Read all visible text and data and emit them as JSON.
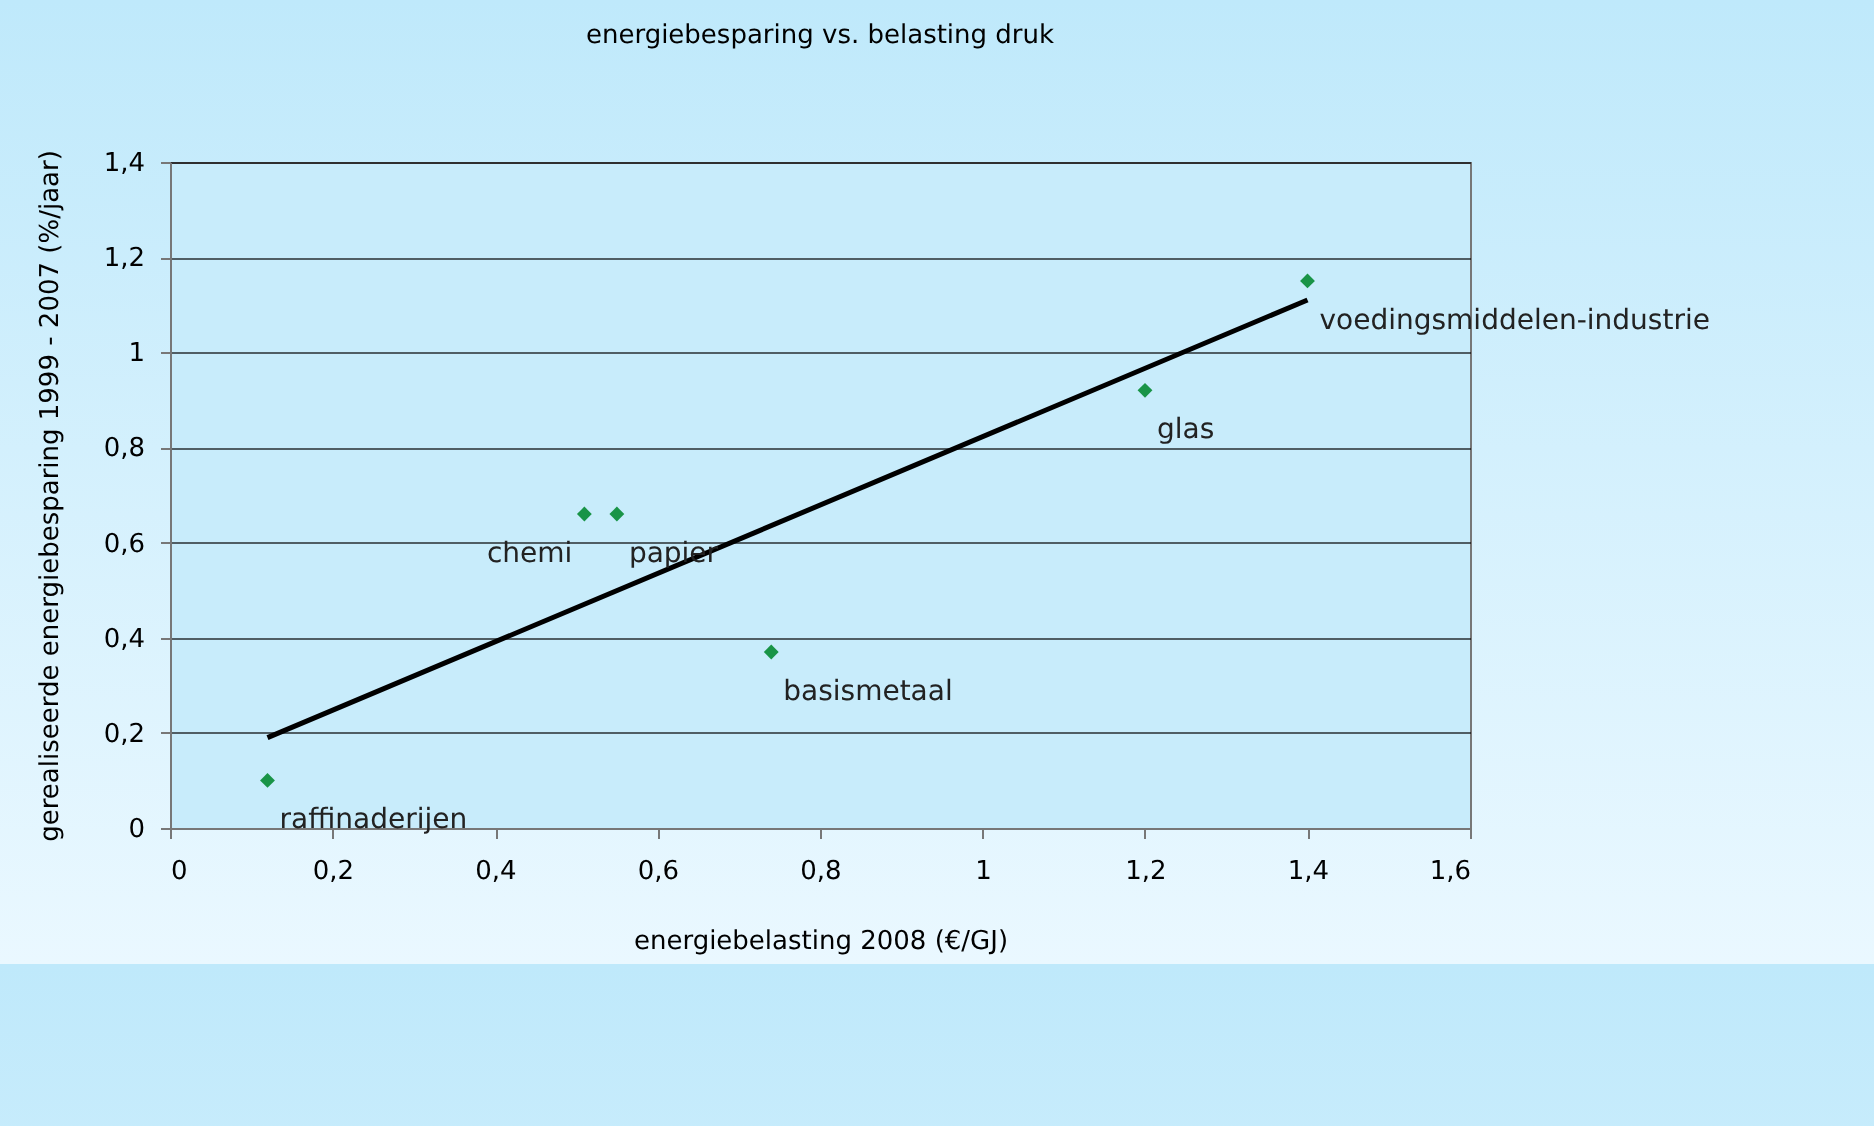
{
  "chart_data": {
    "type": "scatter",
    "title": "energiebesparing vs. belasting druk",
    "xlabel": "energiebelasting 2008 (€/GJ)",
    "ylabel": "gerealiseerde energiebesparing 1999 - 2007 (%/jaar)",
    "xlim": [
      0,
      1.6
    ],
    "xticks": [
      0,
      {
        "value": 0.2,
        "label": "0,2"
      },
      {
        "value": 0.4,
        "label": "0,4"
      },
      {
        "value": 0.6,
        "label": "0,6"
      },
      {
        "value": 0.8,
        "label": "0,8"
      },
      1,
      {
        "value": 1.2,
        "label": "1,2"
      },
      {
        "value": 1.4,
        "label": "1,4"
      },
      {
        "value": 1.6,
        "label": "1,6"
      }
    ],
    "ylim": [
      0,
      1.4
    ],
    "yticks": [
      0,
      {
        "value": 0.2,
        "label": "0,2"
      },
      {
        "value": 0.4,
        "label": "0,4"
      },
      {
        "value": 0.6,
        "label": "0,6"
      },
      {
        "value": 0.8,
        "label": "0,8"
      },
      1,
      {
        "value": 1.2,
        "label": "1,2"
      },
      {
        "value": 1.4,
        "label": "1,4"
      }
    ],
    "grid": "y",
    "series": [
      {
        "marker": "diamond",
        "color": "#199447",
        "x": [
          0.12,
          0.51,
          0.55,
          0.74,
          1.2,
          1.4
        ],
        "values": [
          0.1,
          0.66,
          0.66,
          0.37,
          0.92,
          1.15
        ]
      },
      {
        "type": "line",
        "color": "#000000",
        "x": [
          0.12,
          1.4
        ],
        "values": [
          0.19,
          1.11
        ]
      }
    ],
    "annotations": [
      {
        "text": "raffinaderijen",
        "x": 0.12,
        "y": 0.1
      },
      {
        "text": "chemi",
        "x": 0.51,
        "y": 0.66
      },
      {
        "text": "papier",
        "x": 0.55,
        "y": 0.66
      },
      {
        "text": "basismetaal",
        "x": 0.74,
        "y": 0.37
      },
      {
        "text": "glas",
        "x": 1.2,
        "y": 0.92
      },
      {
        "text": "voedingsmiddelen-industrie",
        "x": 1.4,
        "y": 1.15
      }
    ]
  }
}
